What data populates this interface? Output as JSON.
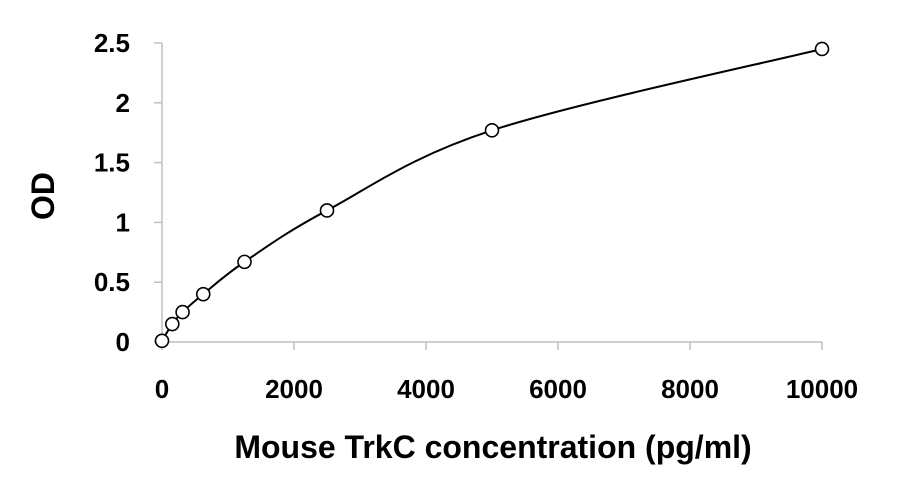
{
  "chart_data": {
    "type": "scatter",
    "title": "",
    "xlabel": "Mouse TrkC concentration (pg/ml)",
    "ylabel": "OD",
    "xlim": [
      0,
      10000
    ],
    "ylim": [
      0,
      2.5
    ],
    "x_ticks": [
      0,
      2000,
      4000,
      6000,
      8000,
      10000
    ],
    "y_ticks": [
      0,
      0.5,
      1,
      1.5,
      2,
      2.5
    ],
    "x_tick_labels": [
      "0",
      "2000",
      "4000",
      "6000",
      "8000",
      "10000"
    ],
    "y_tick_labels": [
      "0",
      "0.5",
      "1",
      "1.5",
      "2",
      "2.5"
    ],
    "grid": false,
    "legend": "none",
    "series": [
      {
        "marker": "open-circle",
        "line": "smooth-fit",
        "x": [
          0,
          156,
          312,
          625,
          1250,
          2500,
          5000,
          10000
        ],
        "y": [
          0.01,
          0.15,
          0.25,
          0.4,
          0.67,
          1.1,
          1.77,
          2.45
        ]
      }
    ],
    "colors": {
      "line": "#000000",
      "marker_stroke": "#000000",
      "marker_fill": "#ffffff"
    }
  }
}
